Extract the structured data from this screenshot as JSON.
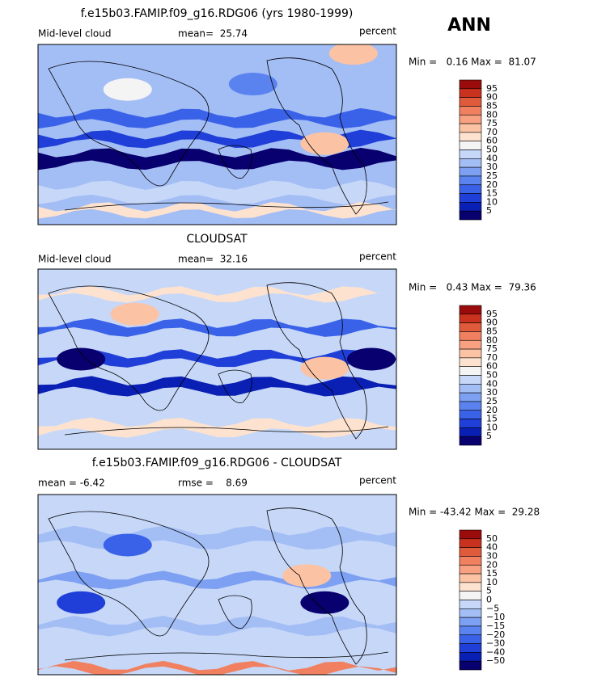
{
  "season": "ANN",
  "panels": [
    {
      "title": "f.e15b03.FAMIP.f09_g16.RDG06 (yrs 1980-1999)",
      "left_label": "Mid-level cloud",
      "center_label": "mean=  25.74",
      "right_label": "percent",
      "minmax": "Min =   0.16 Max =  81.07",
      "colorbar": {
        "labels": [
          "95",
          "90",
          "85",
          "80",
          "75",
          "70",
          "60",
          "50",
          "40",
          "30",
          "25",
          "20",
          "15",
          "10",
          "5"
        ],
        "colors": [
          "#9a0c0c",
          "#c8321e",
          "#e05a3c",
          "#f08060",
          "#f7a182",
          "#fbc3a4",
          "#fde2cf",
          "#f4f4f4",
          "#c6d7f8",
          "#a3bdf5",
          "#7da0f2",
          "#5a83ef",
          "#3a62e8",
          "#1f3fd8",
          "#0a1fb4",
          "#08006e"
        ]
      }
    },
    {
      "title": "CLOUDSAT",
      "left_label": "Mid-level cloud",
      "center_label": "mean=  32.16",
      "right_label": "percent",
      "minmax": "Min =   0.43 Max =  79.36",
      "colorbar": {
        "labels": [
          "95",
          "90",
          "85",
          "80",
          "75",
          "70",
          "60",
          "50",
          "40",
          "30",
          "25",
          "20",
          "15",
          "10",
          "5"
        ],
        "colors": [
          "#9a0c0c",
          "#c8321e",
          "#e05a3c",
          "#f08060",
          "#f7a182",
          "#fbc3a4",
          "#fde2cf",
          "#f4f4f4",
          "#c6d7f8",
          "#a3bdf5",
          "#7da0f2",
          "#5a83ef",
          "#3a62e8",
          "#1f3fd8",
          "#0a1fb4",
          "#08006e"
        ]
      }
    },
    {
      "title": "f.e15b03.FAMIP.f09_g16.RDG06 - CLOUDSAT",
      "left_label": "mean =   -6.42",
      "center_label": "rmse =    8.69",
      "right_label": "percent",
      "minmax": "Min = -43.42 Max =  29.28",
      "colorbar": {
        "labels": [
          "50",
          "40",
          "30",
          "20",
          "15",
          "10",
          "5",
          "0",
          "−5",
          "−10",
          "−15",
          "−20",
          "−30",
          "−40",
          "−50"
        ],
        "colors": [
          "#9a0c0c",
          "#c8321e",
          "#e05a3c",
          "#f08060",
          "#f7a182",
          "#fbc3a4",
          "#fde2cf",
          "#f4f4f4",
          "#c6d7f8",
          "#a3bdf5",
          "#7da0f2",
          "#5a83ef",
          "#3a62e8",
          "#1f3fd8",
          "#0a1fb4",
          "#08006e"
        ]
      }
    }
  ]
}
